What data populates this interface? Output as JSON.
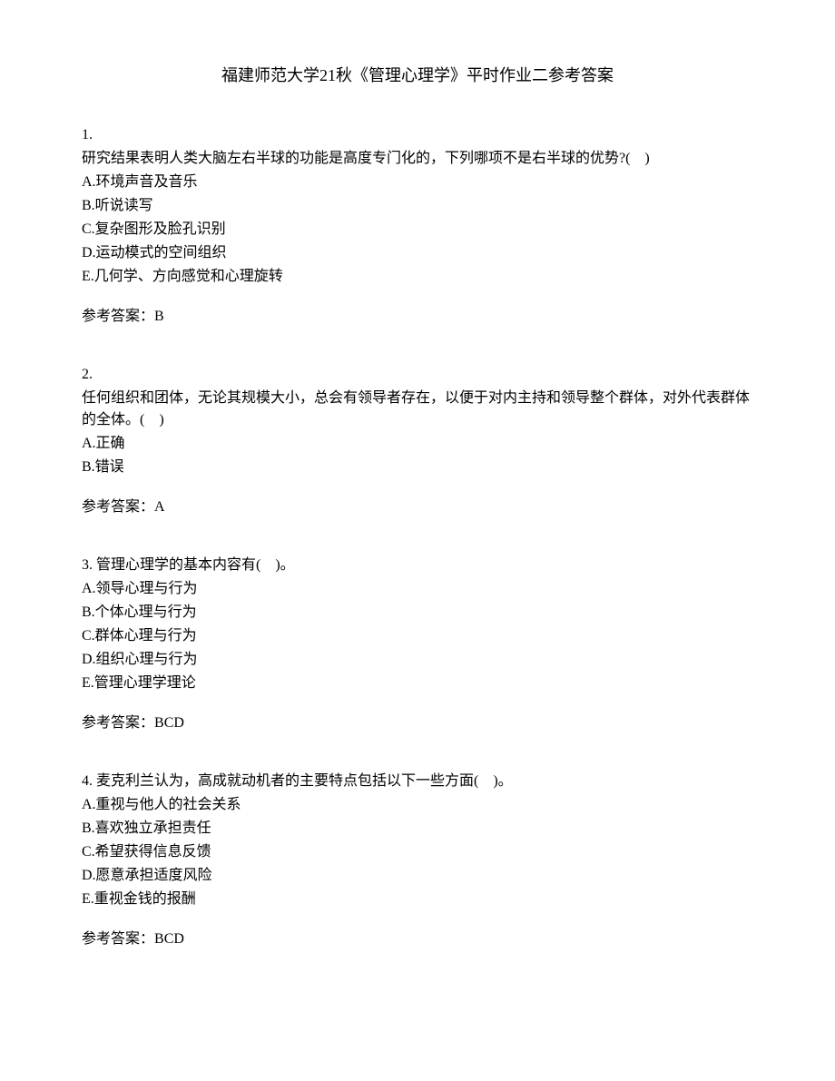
{
  "title": "福建师范大学21秋《管理心理学》平时作业二参考答案",
  "questions": [
    {
      "number": "1.",
      "text_lines": [
        "研究结果表明人类大脑左右半球的功能是高度专门化的，下列哪项不是右半球的优势?(　)"
      ],
      "options": [
        "A.环境声音及音乐",
        "B.听说读写",
        "C.复杂图形及脸孔识别",
        "D.运动模式的空间组织",
        "E.几何学、方向感觉和心理旋转"
      ],
      "answer_label": "参考答案：",
      "answer_value": "B"
    },
    {
      "number": "2.",
      "text_lines": [
        "任何组织和团体，无论其规模大小，总会有领导者存在，以便于对内主持和领导整个群体，对外代表群体的全体。(　)"
      ],
      "options": [
        "A.正确",
        "B.错误"
      ],
      "answer_label": "参考答案：",
      "answer_value": "A"
    },
    {
      "number": "3. ",
      "text_lines": [
        "管理心理学的基本内容有(　)。"
      ],
      "options": [
        "A.领导心理与行为",
        "B.个体心理与行为",
        "C.群体心理与行为",
        "D.组织心理与行为",
        "E.管理心理学理论"
      ],
      "answer_label": "参考答案：",
      "answer_value": "BCD"
    },
    {
      "number": "4. ",
      "text_lines": [
        "麦克利兰认为，高成就动机者的主要特点包括以下一些方面(　)。"
      ],
      "options": [
        "A.重视与他人的社会关系",
        "B.喜欢独立承担责任",
        "C.希望获得信息反馈",
        "D.愿意承担适度风险",
        "E.重视金钱的报酬"
      ],
      "answer_label": "参考答案：",
      "answer_value": "BCD"
    }
  ]
}
